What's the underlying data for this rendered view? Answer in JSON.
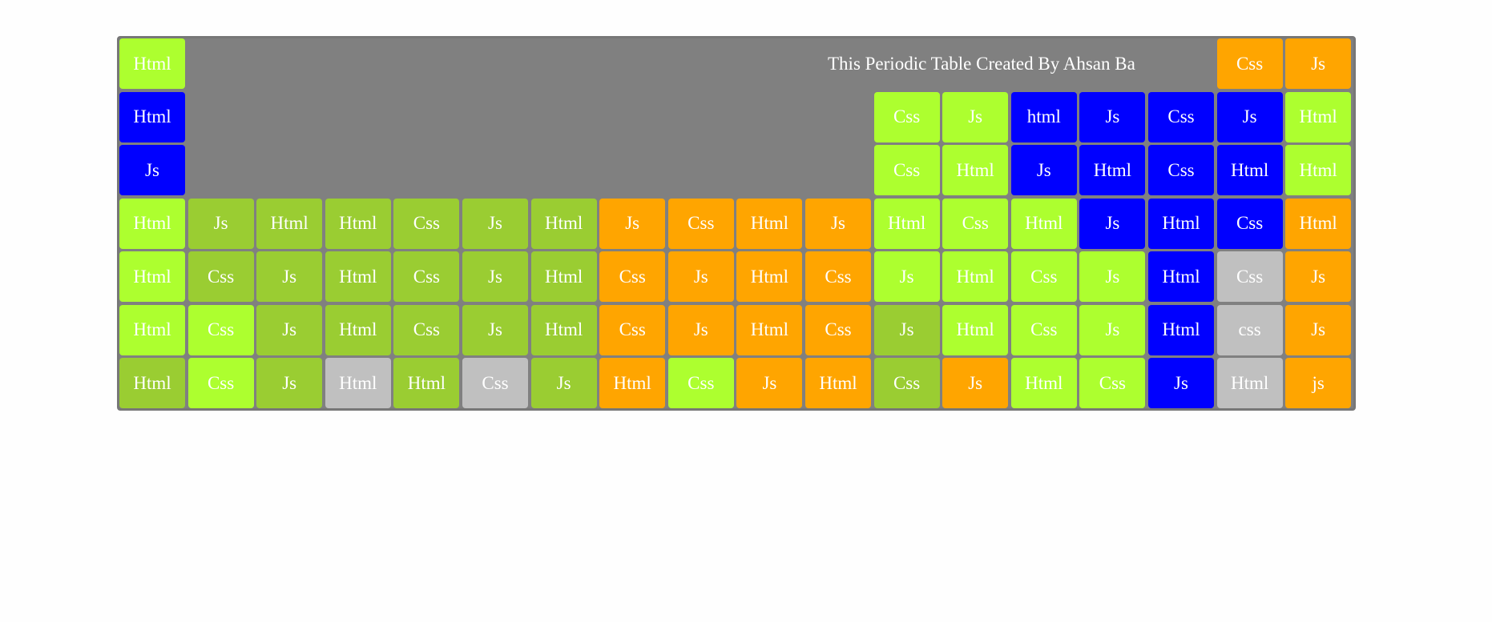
{
  "colors": {
    "L": "#adff2f",
    "G": "#9acd32",
    "O": "#ffa500",
    "B": "#0000ff",
    "S": "#c0c0c0"
  },
  "banner": "This Periodic Table Created By Ahsan Ba",
  "cells": [
    {
      "row": 1,
      "col": 1,
      "label": "Html",
      "color": "L"
    },
    {
      "row": 1,
      "col": 17,
      "label": "Css",
      "color": "O"
    },
    {
      "row": 1,
      "col": 18,
      "label": "Js",
      "color": "O"
    },
    {
      "row": 2,
      "col": 1,
      "label": "Html",
      "color": "B"
    },
    {
      "row": 2,
      "col": 12,
      "label": "Css",
      "color": "L"
    },
    {
      "row": 2,
      "col": 13,
      "label": "Js",
      "color": "L"
    },
    {
      "row": 2,
      "col": 14,
      "label": "html",
      "color": "B"
    },
    {
      "row": 2,
      "col": 15,
      "label": "Js",
      "color": "B"
    },
    {
      "row": 2,
      "col": 16,
      "label": "Css",
      "color": "B"
    },
    {
      "row": 2,
      "col": 17,
      "label": "Js",
      "color": "B"
    },
    {
      "row": 2,
      "col": 18,
      "label": "Html",
      "color": "L"
    },
    {
      "row": 3,
      "col": 1,
      "label": "Js",
      "color": "B"
    },
    {
      "row": 3,
      "col": 12,
      "label": "Css",
      "color": "L"
    },
    {
      "row": 3,
      "col": 13,
      "label": "Html",
      "color": "L"
    },
    {
      "row": 3,
      "col": 14,
      "label": "Js",
      "color": "B"
    },
    {
      "row": 3,
      "col": 15,
      "label": "Html",
      "color": "B"
    },
    {
      "row": 3,
      "col": 16,
      "label": "Css",
      "color": "B"
    },
    {
      "row": 3,
      "col": 17,
      "label": "Html",
      "color": "B"
    },
    {
      "row": 3,
      "col": 18,
      "label": "Html",
      "color": "L"
    },
    {
      "row": 4,
      "col": 1,
      "label": "Html",
      "color": "L"
    },
    {
      "row": 4,
      "col": 2,
      "label": "Js",
      "color": "G"
    },
    {
      "row": 4,
      "col": 3,
      "label": "Html",
      "color": "G"
    },
    {
      "row": 4,
      "col": 4,
      "label": "Html",
      "color": "G"
    },
    {
      "row": 4,
      "col": 5,
      "label": "Css",
      "color": "G"
    },
    {
      "row": 4,
      "col": 6,
      "label": "Js",
      "color": "G"
    },
    {
      "row": 4,
      "col": 7,
      "label": "Html",
      "color": "G"
    },
    {
      "row": 4,
      "col": 8,
      "label": "Js",
      "color": "O"
    },
    {
      "row": 4,
      "col": 9,
      "label": "Css",
      "color": "O"
    },
    {
      "row": 4,
      "col": 10,
      "label": "Html",
      "color": "O"
    },
    {
      "row": 4,
      "col": 11,
      "label": "Js",
      "color": "O"
    },
    {
      "row": 4,
      "col": 12,
      "label": "Html",
      "color": "L"
    },
    {
      "row": 4,
      "col": 13,
      "label": "Css",
      "color": "L"
    },
    {
      "row": 4,
      "col": 14,
      "label": "Html",
      "color": "L"
    },
    {
      "row": 4,
      "col": 15,
      "label": "Js",
      "color": "B"
    },
    {
      "row": 4,
      "col": 16,
      "label": "Html",
      "color": "B"
    },
    {
      "row": 4,
      "col": 17,
      "label": "Css",
      "color": "B"
    },
    {
      "row": 4,
      "col": 18,
      "label": "Html",
      "color": "O"
    },
    {
      "row": 5,
      "col": 1,
      "label": "Html",
      "color": "L"
    },
    {
      "row": 5,
      "col": 2,
      "label": "Css",
      "color": "G"
    },
    {
      "row": 5,
      "col": 3,
      "label": "Js",
      "color": "G"
    },
    {
      "row": 5,
      "col": 4,
      "label": "Html",
      "color": "G"
    },
    {
      "row": 5,
      "col": 5,
      "label": "Css",
      "color": "G"
    },
    {
      "row": 5,
      "col": 6,
      "label": "Js",
      "color": "G"
    },
    {
      "row": 5,
      "col": 7,
      "label": "Html",
      "color": "G"
    },
    {
      "row": 5,
      "col": 8,
      "label": "Css",
      "color": "O"
    },
    {
      "row": 5,
      "col": 9,
      "label": "Js",
      "color": "O"
    },
    {
      "row": 5,
      "col": 10,
      "label": "Html",
      "color": "O"
    },
    {
      "row": 5,
      "col": 11,
      "label": "Css",
      "color": "O"
    },
    {
      "row": 5,
      "col": 12,
      "label": "Js",
      "color": "L"
    },
    {
      "row": 5,
      "col": 13,
      "label": "Html",
      "color": "L"
    },
    {
      "row": 5,
      "col": 14,
      "label": "Css",
      "color": "L"
    },
    {
      "row": 5,
      "col": 15,
      "label": "Js",
      "color": "L"
    },
    {
      "row": 5,
      "col": 16,
      "label": "Html",
      "color": "B"
    },
    {
      "row": 5,
      "col": 17,
      "label": "Css",
      "color": "S"
    },
    {
      "row": 5,
      "col": 18,
      "label": "Js",
      "color": "O"
    },
    {
      "row": 6,
      "col": 1,
      "label": "Html",
      "color": "L"
    },
    {
      "row": 6,
      "col": 2,
      "label": "Css",
      "color": "L"
    },
    {
      "row": 6,
      "col": 3,
      "label": "Js",
      "color": "G"
    },
    {
      "row": 6,
      "col": 4,
      "label": "Html",
      "color": "G"
    },
    {
      "row": 6,
      "col": 5,
      "label": "Css",
      "color": "G"
    },
    {
      "row": 6,
      "col": 6,
      "label": "Js",
      "color": "G"
    },
    {
      "row": 6,
      "col": 7,
      "label": "Html",
      "color": "G"
    },
    {
      "row": 6,
      "col": 8,
      "label": "Css",
      "color": "O"
    },
    {
      "row": 6,
      "col": 9,
      "label": "Js",
      "color": "O"
    },
    {
      "row": 6,
      "col": 10,
      "label": "Html",
      "color": "O"
    },
    {
      "row": 6,
      "col": 11,
      "label": "Css",
      "color": "O"
    },
    {
      "row": 6,
      "col": 12,
      "label": "Js",
      "color": "G"
    },
    {
      "row": 6,
      "col": 13,
      "label": "Html",
      "color": "L"
    },
    {
      "row": 6,
      "col": 14,
      "label": "Css",
      "color": "L"
    },
    {
      "row": 6,
      "col": 15,
      "label": "Js",
      "color": "L"
    },
    {
      "row": 6,
      "col": 16,
      "label": "Html",
      "color": "B"
    },
    {
      "row": 6,
      "col": 17,
      "label": "css",
      "color": "S"
    },
    {
      "row": 6,
      "col": 18,
      "label": "Js",
      "color": "O"
    },
    {
      "row": 7,
      "col": 1,
      "label": "Html",
      "color": "G"
    },
    {
      "row": 7,
      "col": 2,
      "label": "Css",
      "color": "L"
    },
    {
      "row": 7,
      "col": 3,
      "label": "Js",
      "color": "G"
    },
    {
      "row": 7,
      "col": 4,
      "label": "Html",
      "color": "S"
    },
    {
      "row": 7,
      "col": 5,
      "label": "Html",
      "color": "G"
    },
    {
      "row": 7,
      "col": 6,
      "label": "Css",
      "color": "S"
    },
    {
      "row": 7,
      "col": 7,
      "label": "Js",
      "color": "G"
    },
    {
      "row": 7,
      "col": 8,
      "label": "Html",
      "color": "O"
    },
    {
      "row": 7,
      "col": 9,
      "label": "Css",
      "color": "L"
    },
    {
      "row": 7,
      "col": 10,
      "label": "Js",
      "color": "O"
    },
    {
      "row": 7,
      "col": 11,
      "label": "Html",
      "color": "O"
    },
    {
      "row": 7,
      "col": 12,
      "label": "Css",
      "color": "G"
    },
    {
      "row": 7,
      "col": 13,
      "label": "Js",
      "color": "O"
    },
    {
      "row": 7,
      "col": 14,
      "label": "Html",
      "color": "L"
    },
    {
      "row": 7,
      "col": 15,
      "label": "Css",
      "color": "L"
    },
    {
      "row": 7,
      "col": 16,
      "label": "Js",
      "color": "B"
    },
    {
      "row": 7,
      "col": 17,
      "label": "Html",
      "color": "S"
    },
    {
      "row": 7,
      "col": 18,
      "label": "js",
      "color": "O"
    }
  ]
}
